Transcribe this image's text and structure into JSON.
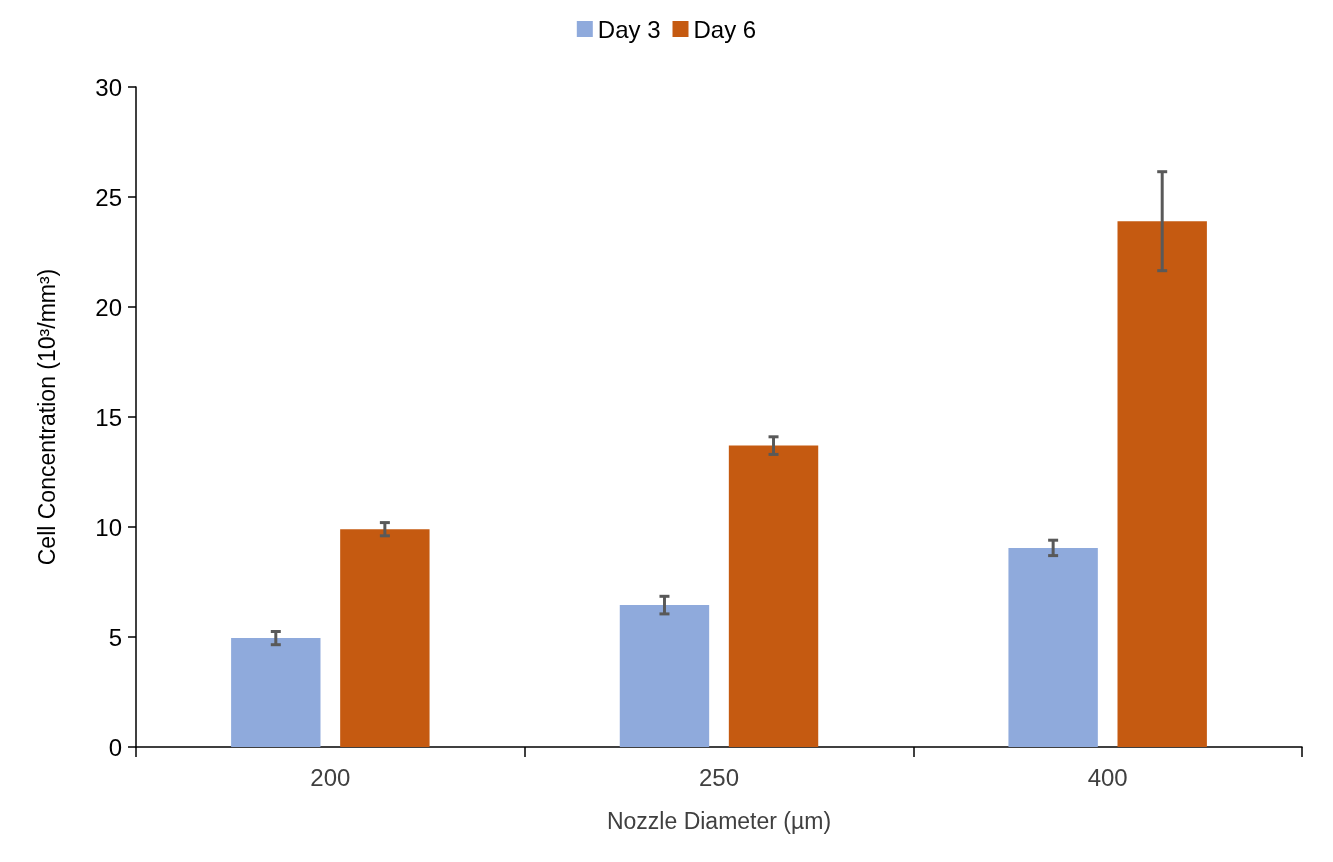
{
  "chart_data": {
    "type": "bar",
    "xlabel": "Nozzle Diameter (µm)",
    "ylabel": "Cell Concentration (10³/mm³)",
    "categories": [
      "200",
      "250",
      "400"
    ],
    "series": [
      {
        "name": "Day 3",
        "color": "#8faadc",
        "values": [
          4.95,
          6.45,
          9.05
        ],
        "errors": [
          0.3,
          0.4,
          0.35
        ]
      },
      {
        "name": "Day 6",
        "color": "#c55a11",
        "values": [
          9.9,
          13.7,
          23.9
        ],
        "errors": [
          0.3,
          0.4,
          2.25
        ]
      }
    ],
    "ylim": [
      0,
      30
    ],
    "yticks": [
      0,
      5,
      10,
      15,
      20,
      25,
      30
    ],
    "grid": false,
    "legend": "top"
  }
}
